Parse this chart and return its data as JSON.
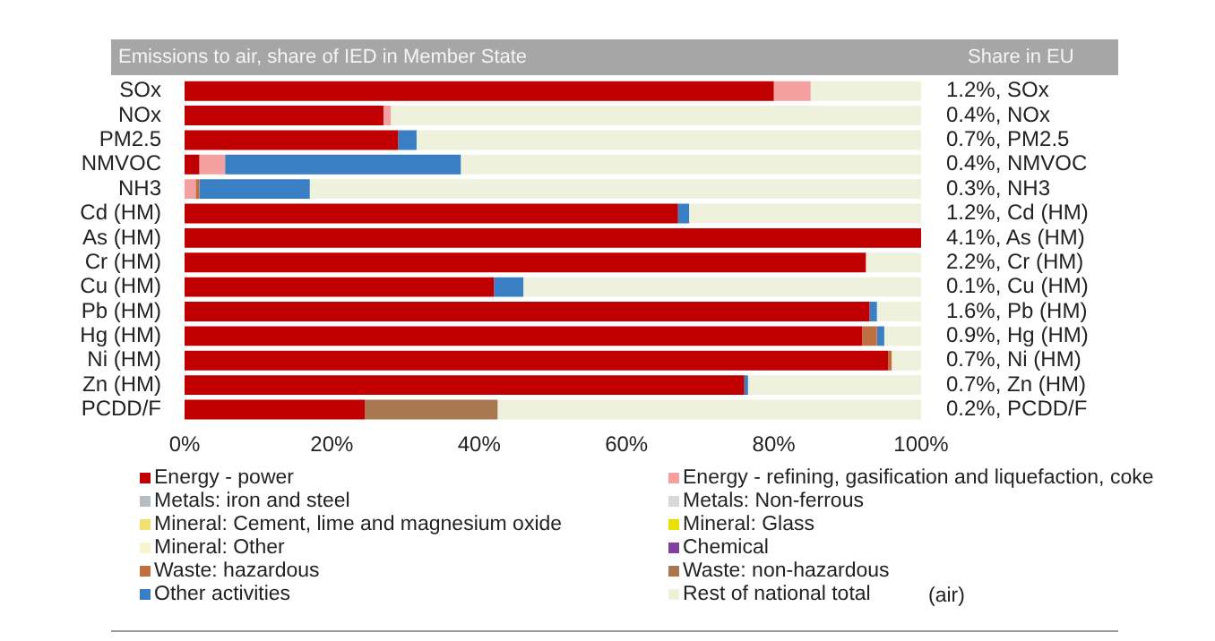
{
  "chart_data": {
    "type": "bar",
    "orientation": "horizontal",
    "stacked": true,
    "title": "Emissions to air, share of IED in Member State",
    "y2label": "Share in EU",
    "categories": [
      "SOx",
      "NOx",
      "PM2.5",
      "NMVOC",
      "NH3",
      "Cd (HM)",
      "As (HM)",
      "Cr (HM)",
      "Cu (HM)",
      "Pb (HM)",
      "Hg (HM)",
      "Ni (HM)",
      "Zn (HM)",
      "PCDD/F"
    ],
    "series": [
      {
        "name": "Energy - power",
        "color": "#c00000",
        "values": [
          80,
          27,
          29,
          2,
          0,
          67,
          100,
          92.5,
          42,
          93,
          92,
          95.5,
          76,
          24.5
        ]
      },
      {
        "name": "Energy - refining, gasification and liquefaction, coke",
        "color": "#f4a0a0",
        "values": [
          5,
          1,
          0,
          3.5,
          1.5,
          0,
          0,
          0,
          0,
          0,
          0,
          0,
          0,
          0
        ]
      },
      {
        "name": "Metals: iron and steel",
        "color": "#b4bcc4",
        "values": [
          0,
          0,
          0,
          0,
          0,
          0,
          0,
          0,
          0,
          0,
          0,
          0,
          0,
          0
        ]
      },
      {
        "name": "Metals: Non-ferrous",
        "color": "#d8d8d8",
        "values": [
          0,
          0,
          0,
          0,
          0,
          0,
          0,
          0,
          0,
          0,
          0,
          0,
          0,
          0
        ]
      },
      {
        "name": "Mineral: Cement, lime and magnesium oxide",
        "color": "#f0e070",
        "values": [
          0,
          0,
          0,
          0,
          0,
          0,
          0,
          0,
          0,
          0,
          0,
          0,
          0,
          0
        ]
      },
      {
        "name": "Mineral: Glass",
        "color": "#e8e000",
        "values": [
          0,
          0,
          0,
          0,
          0,
          0,
          0,
          0,
          0,
          0,
          0,
          0,
          0,
          0
        ]
      },
      {
        "name": "Mineral: Other",
        "color": "#f8f4d0",
        "values": [
          0,
          0,
          0,
          0,
          0,
          0,
          0,
          0,
          0,
          0,
          0,
          0,
          0,
          0
        ]
      },
      {
        "name": "Chemical",
        "color": "#8040a0",
        "values": [
          0,
          0,
          0,
          0,
          0,
          0,
          0,
          0,
          0,
          0,
          0,
          0,
          0,
          0
        ]
      },
      {
        "name": "Waste: hazardous",
        "color": "#c07040",
        "values": [
          0,
          0,
          0,
          0,
          0.5,
          0,
          0,
          0,
          0,
          0,
          2,
          0.5,
          0,
          0
        ]
      },
      {
        "name": "Waste: non-hazardous",
        "color": "#a87850",
        "values": [
          0,
          0,
          0,
          0,
          0,
          0,
          0,
          0,
          0,
          0,
          0,
          0,
          0,
          18
        ]
      },
      {
        "name": "Other activities",
        "color": "#3a7fc4",
        "values": [
          0,
          0,
          2.5,
          32,
          15,
          1.5,
          0,
          0,
          4,
          1,
          1,
          0,
          0.5,
          0
        ]
      },
      {
        "name": "Rest of national total",
        "color": "#eef2dc",
        "values": [
          15,
          72,
          68.5,
          62.5,
          83,
          31.5,
          0,
          7.5,
          54,
          6,
          5,
          4,
          23.5,
          57.5
        ]
      }
    ],
    "xlim": [
      0,
      100
    ],
    "xticks": [
      {
        "value": 0,
        "label": "0%"
      },
      {
        "value": 20,
        "label": "20%"
      },
      {
        "value": 40,
        "label": "40%"
      },
      {
        "value": 60,
        "label": "60%"
      },
      {
        "value": 80,
        "label": "80%"
      },
      {
        "value": 100,
        "label": "100%"
      }
    ],
    "grid": false,
    "legend": "bottom",
    "annotations": [
      "1.2%, SOx",
      "0.4%, NOx",
      "0.7%, PM2.5",
      "0.4%, NMVOC",
      "0.3%, NH3",
      "1.2%, Cd (HM)",
      "4.1%, As (HM)",
      "2.2%, Cr (HM)",
      "0.1%, Cu (HM)",
      "1.6%, Pb (HM)",
      "0.9%, Hg (HM)",
      "0.7%, Ni (HM)",
      "0.7%, Zn (HM)",
      "0.2%, PCDD/F",
      "(air)"
    ]
  }
}
